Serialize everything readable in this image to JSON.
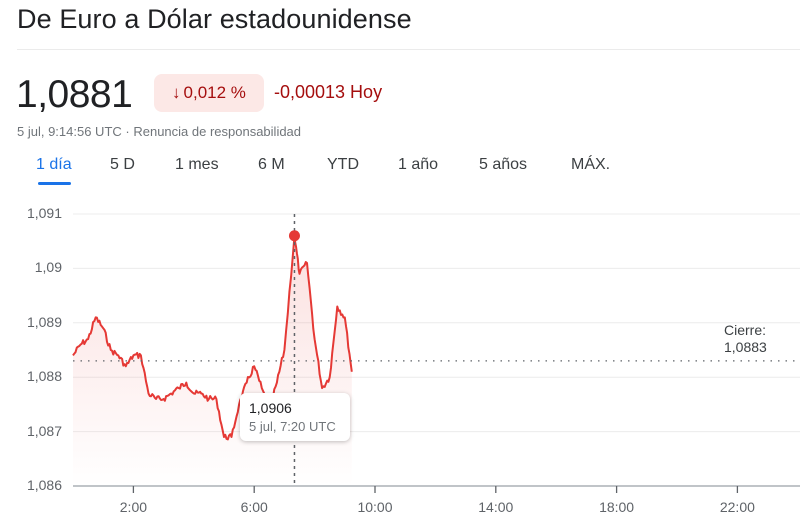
{
  "header": {
    "title": "De Euro a Dólar estadounidense"
  },
  "quote": {
    "price": "1,0881",
    "change_pct": "0,012 %",
    "change_direction": "down",
    "change_arrow": "↓",
    "change_abs": "-0,00013 Hoy",
    "timestamp": "5 jul, 9:14:56 UTC",
    "separator": " · ",
    "disclaimer": "Renuncia de responsabilidad"
  },
  "tabs": [
    {
      "label": "1 día",
      "active": true
    },
    {
      "label": "5 D",
      "active": false
    },
    {
      "label": "1 mes",
      "active": false
    },
    {
      "label": "6 M",
      "active": false
    },
    {
      "label": "YTD",
      "active": false
    },
    {
      "label": "1 año",
      "active": false
    },
    {
      "label": "5 años",
      "active": false
    },
    {
      "label": "MÁX.",
      "active": false
    }
  ],
  "colors": {
    "line": "#e53935",
    "negative_text": "#a50e0e",
    "negative_bg": "#fce8e6",
    "accent": "#1a73e8"
  },
  "chart": {
    "close_label": "Cierre:",
    "close_value": "1,0883",
    "tooltip": {
      "value": "1,0906",
      "time": "5 jul, 7:20 UTC"
    }
  },
  "chart_data": {
    "type": "line",
    "title": "De Euro a Dólar estadounidense",
    "xlabel": "",
    "ylabel": "",
    "ylim": [
      1.086,
      1.091
    ],
    "xlim": [
      "0:00",
      "24:00"
    ],
    "yticks": [
      "1,086",
      "1,087",
      "1,088",
      "1,089",
      "1,09",
      "1,091"
    ],
    "xticks": [
      "2:00",
      "6:00",
      "10:00",
      "14:00",
      "18:00",
      "22:00"
    ],
    "grid": true,
    "legend": "none",
    "previous_close": 1.0883,
    "highlight": {
      "time": "7:20",
      "value": 1.0906
    },
    "series": [
      {
        "name": "EUR/USD",
        "x": [
          "0:00",
          "0:15",
          "0:30",
          "0:45",
          "1:00",
          "1:15",
          "1:30",
          "1:45",
          "2:00",
          "2:15",
          "2:30",
          "2:45",
          "3:00",
          "3:15",
          "3:30",
          "3:45",
          "4:00",
          "4:15",
          "4:30",
          "4:45",
          "5:00",
          "5:15",
          "5:30",
          "5:45",
          "6:00",
          "6:15",
          "6:30",
          "6:45",
          "7:00",
          "7:20",
          "7:30",
          "7:45",
          "8:00",
          "8:15",
          "8:30",
          "8:45",
          "9:00",
          "9:14"
        ],
        "values": [
          1.0884,
          1.0886,
          1.0887,
          1.0891,
          1.0889,
          1.0885,
          1.0884,
          1.0882,
          1.0884,
          1.0884,
          1.0877,
          1.0876,
          1.0876,
          1.0877,
          1.0878,
          1.0879,
          1.0877,
          1.0877,
          1.0876,
          1.0876,
          1.0869,
          1.0869,
          1.0875,
          1.0879,
          1.0882,
          1.0878,
          1.0874,
          1.0879,
          1.0885,
          1.0906,
          1.0899,
          1.0901,
          1.0887,
          1.0878,
          1.088,
          1.0893,
          1.0891,
          1.0881
        ]
      }
    ]
  }
}
